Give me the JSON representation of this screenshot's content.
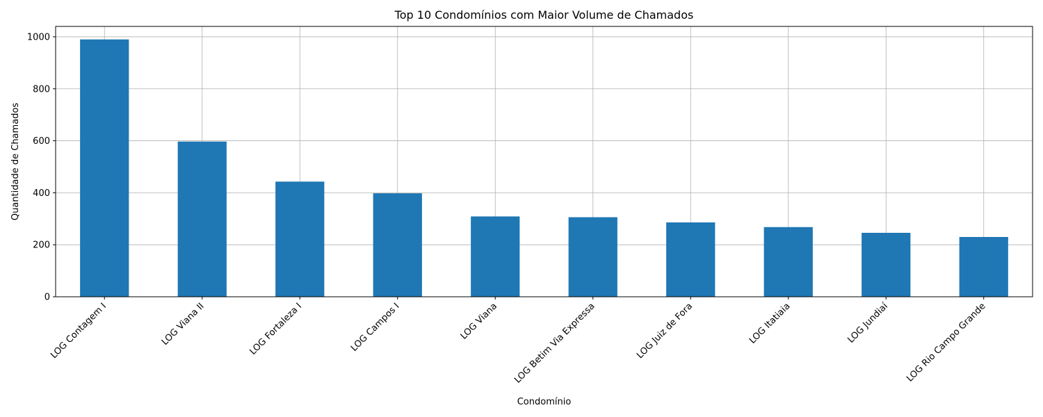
{
  "chart_data": {
    "type": "bar",
    "title": "Top 10 Condomínios com Maior Volume de Chamados",
    "xlabel": "Condomínio",
    "ylabel": "Quantidade de Chamados",
    "categories": [
      "LOG Contagem I",
      "LOG Viana II",
      "LOG Fortaleza I",
      "LOG Campos I",
      "LOG Viana",
      "LOG Betim Via Expressa",
      "LOG Juiz de Fora",
      "LOG Itatiaia",
      "LOG Jundiaí",
      "LOG Rio Campo Grande"
    ],
    "values": [
      990,
      597,
      443,
      398,
      309,
      306,
      286,
      268,
      246,
      230
    ],
    "yticks": [
      0,
      200,
      400,
      600,
      800,
      1000
    ],
    "ylim": [
      0,
      1040
    ],
    "grid": true,
    "bar_color": "#1f77b4"
  }
}
